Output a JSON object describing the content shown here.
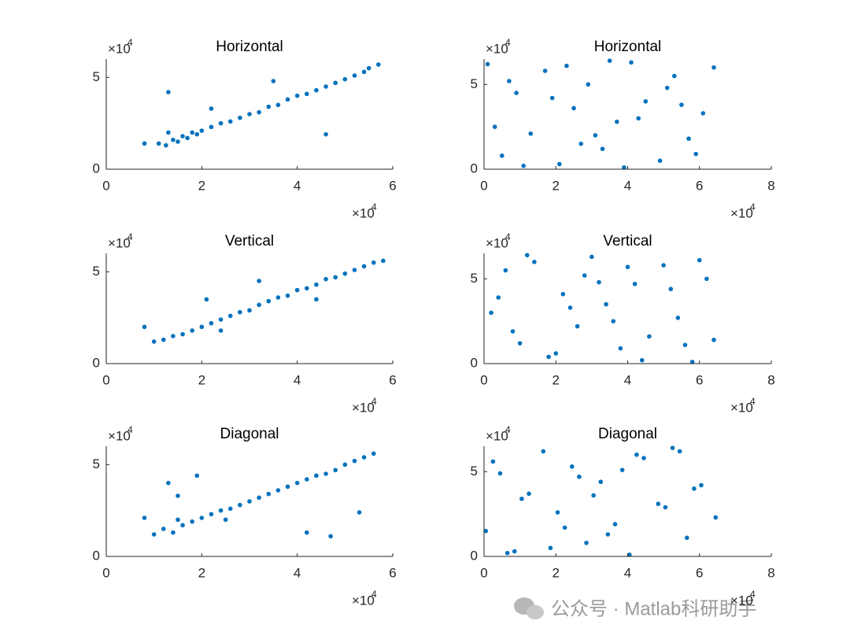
{
  "chart_data": [
    {
      "type": "scatter",
      "title": "Horizontal",
      "color": "#0072BD",
      "x_multiplier": "×10",
      "x_exponent": "4",
      "y_multiplier": "×10",
      "y_exponent": "4",
      "xlim": [
        0,
        60000
      ],
      "ylim": [
        0,
        60000
      ],
      "xticks": [
        0,
        {
          "value": 20000,
          "label": "2"
        },
        {
          "value": 40000,
          "label": "4"
        },
        {
          "value": 60000,
          "label": "6"
        }
      ],
      "yticks": [
        0,
        {
          "value": 50000,
          "label": "5"
        }
      ],
      "x": [
        8000,
        11000,
        12500,
        13000,
        14000,
        15000,
        16000,
        17000,
        18000,
        19000,
        20000,
        22000,
        24000,
        26000,
        28000,
        30000,
        32000,
        34000,
        36000,
        38000,
        40000,
        42000,
        44000,
        46000,
        48000,
        50000,
        52000,
        54000,
        55000,
        57000,
        13000,
        22000,
        46000,
        35000
      ],
      "values": [
        14000,
        14000,
        13000,
        20000,
        16000,
        15000,
        18000,
        17000,
        20000,
        19000,
        21000,
        23000,
        25000,
        26000,
        28000,
        30000,
        31000,
        34000,
        35000,
        38000,
        40000,
        41000,
        43000,
        45000,
        47000,
        49000,
        51000,
        53000,
        55000,
        57000,
        42000,
        33000,
        19000,
        48000
      ]
    },
    {
      "type": "scatter",
      "title": "Horizontal",
      "color": "#0072BD",
      "x_multiplier": "×10",
      "x_exponent": "4",
      "y_multiplier": "×10",
      "y_exponent": "4",
      "xlim": [
        0,
        80000
      ],
      "ylim": [
        0,
        65000
      ],
      "xticks": [
        0,
        {
          "value": 20000,
          "label": "2"
        },
        {
          "value": 40000,
          "label": "4"
        },
        {
          "value": 60000,
          "label": "6"
        },
        {
          "value": 80000,
          "label": "8"
        }
      ],
      "yticks": [
        0,
        {
          "value": 50000,
          "label": "5"
        }
      ],
      "x": [
        1000,
        5000,
        9000,
        13000,
        17000,
        21000,
        25000,
        29000,
        33000,
        37000,
        41000,
        45000,
        49000,
        53000,
        57000,
        61000,
        64000,
        3000,
        11000,
        19000,
        27000,
        35000,
        43000,
        51000,
        59000,
        7000,
        23000,
        39000,
        55000,
        31000
      ],
      "values": [
        62000,
        8000,
        45000,
        21000,
        58000,
        3000,
        36000,
        50000,
        12000,
        28000,
        63000,
        40000,
        5000,
        55000,
        18000,
        33000,
        60000,
        25000,
        2000,
        42000,
        15000,
        64000,
        30000,
        48000,
        9000,
        52000,
        61000,
        1000,
        38000,
        20000
      ]
    },
    {
      "type": "scatter",
      "title": "Vertical",
      "color": "#0072BD",
      "x_multiplier": "×10",
      "x_exponent": "4",
      "y_multiplier": "×10",
      "y_exponent": "4",
      "xlim": [
        0,
        60000
      ],
      "ylim": [
        0,
        60000
      ],
      "xticks": [
        0,
        {
          "value": 20000,
          "label": "2"
        },
        {
          "value": 40000,
          "label": "4"
        },
        {
          "value": 60000,
          "label": "6"
        }
      ],
      "yticks": [
        0,
        {
          "value": 50000,
          "label": "5"
        }
      ],
      "x": [
        8000,
        10000,
        12000,
        14000,
        16000,
        18000,
        20000,
        22000,
        24000,
        26000,
        28000,
        30000,
        32000,
        34000,
        36000,
        38000,
        40000,
        42000,
        44000,
        46000,
        48000,
        50000,
        52000,
        54000,
        56000,
        58000,
        21000,
        32000,
        24000,
        44000
      ],
      "values": [
        20000,
        12000,
        13000,
        15000,
        16000,
        18000,
        20000,
        22000,
        24000,
        26000,
        28000,
        29000,
        32000,
        34000,
        36000,
        37000,
        40000,
        41000,
        43000,
        46000,
        47000,
        49000,
        51000,
        53000,
        55000,
        56000,
        35000,
        45000,
        18000,
        35000
      ]
    },
    {
      "type": "scatter",
      "title": "Vertical",
      "color": "#0072BD",
      "x_multiplier": "×10",
      "x_exponent": "4",
      "y_multiplier": "×10",
      "y_exponent": "4",
      "xlim": [
        0,
        80000
      ],
      "ylim": [
        0,
        65000
      ],
      "xticks": [
        0,
        {
          "value": 20000,
          "label": "2"
        },
        {
          "value": 40000,
          "label": "4"
        },
        {
          "value": 60000,
          "label": "6"
        },
        {
          "value": 80000,
          "label": "8"
        }
      ],
      "yticks": [
        0,
        {
          "value": 50000,
          "label": "5"
        }
      ],
      "x": [
        2000,
        6000,
        10000,
        14000,
        18000,
        22000,
        26000,
        30000,
        34000,
        38000,
        42000,
        46000,
        50000,
        54000,
        58000,
        62000,
        64000,
        4000,
        12000,
        20000,
        28000,
        36000,
        44000,
        52000,
        60000,
        8000,
        24000,
        40000,
        56000,
        32000
      ],
      "values": [
        30000,
        55000,
        12000,
        60000,
        4000,
        41000,
        22000,
        63000,
        35000,
        9000,
        47000,
        16000,
        58000,
        27000,
        1000,
        50000,
        14000,
        39000,
        64000,
        6000,
        52000,
        25000,
        2000,
        44000,
        61000,
        19000,
        33000,
        57000,
        11000,
        48000
      ]
    },
    {
      "type": "scatter",
      "title": "Diagonal",
      "color": "#0072BD",
      "x_multiplier": "×10",
      "x_exponent": "4",
      "y_multiplier": "×10",
      "y_exponent": "4",
      "xlim": [
        0,
        60000
      ],
      "ylim": [
        0,
        60000
      ],
      "xticks": [
        0,
        {
          "value": 20000,
          "label": "2"
        },
        {
          "value": 40000,
          "label": "4"
        },
        {
          "value": 60000,
          "label": "6"
        }
      ],
      "yticks": [
        0,
        {
          "value": 50000,
          "label": "5"
        }
      ],
      "x": [
        8000,
        10000,
        12000,
        13000,
        14000,
        15000,
        16000,
        18000,
        20000,
        22000,
        24000,
        26000,
        28000,
        30000,
        32000,
        34000,
        36000,
        38000,
        40000,
        42000,
        44000,
        46000,
        48000,
        50000,
        52000,
        54000,
        56000,
        15000,
        19000,
        42000,
        47000,
        53000,
        25000
      ],
      "values": [
        21000,
        12000,
        15000,
        40000,
        13000,
        20000,
        17000,
        19000,
        21000,
        23000,
        25000,
        26000,
        28000,
        30000,
        32000,
        34000,
        36000,
        38000,
        40000,
        42000,
        44000,
        45000,
        47000,
        50000,
        52000,
        54000,
        56000,
        33000,
        44000,
        13000,
        11000,
        24000,
        20000
      ]
    },
    {
      "type": "scatter",
      "title": "Diagonal",
      "color": "#0072BD",
      "x_multiplier": "×10",
      "x_exponent": "4",
      "y_multiplier": "×10",
      "y_exponent": "4",
      "xlim": [
        0,
        80000
      ],
      "ylim": [
        0,
        65000
      ],
      "xticks": [
        0,
        {
          "value": 20000,
          "label": "2"
        },
        {
          "value": 40000,
          "label": "4"
        },
        {
          "value": 60000,
          "label": "6"
        },
        {
          "value": 80000,
          "label": "8"
        }
      ],
      "yticks": [
        0,
        {
          "value": 50000,
          "label": "5"
        }
      ],
      "x": [
        500,
        4500,
        8500,
        12500,
        16500,
        20500,
        24500,
        28500,
        32500,
        36500,
        40500,
        44500,
        48500,
        52500,
        56500,
        60500,
        64500,
        2500,
        10500,
        18500,
        26500,
        34500,
        42500,
        50500,
        58500,
        6500,
        22500,
        38500,
        54500,
        30500
      ],
      "values": [
        15000,
        49000,
        3000,
        37000,
        62000,
        26000,
        53000,
        8000,
        44000,
        19000,
        1000,
        58000,
        31000,
        64000,
        11000,
        42000,
        23000,
        56000,
        34000,
        5000,
        47000,
        13000,
        60000,
        29000,
        40000,
        2000,
        17000,
        51000,
        62000,
        36000
      ]
    }
  ],
  "watermark": "公众号 · Matlab科研助手"
}
